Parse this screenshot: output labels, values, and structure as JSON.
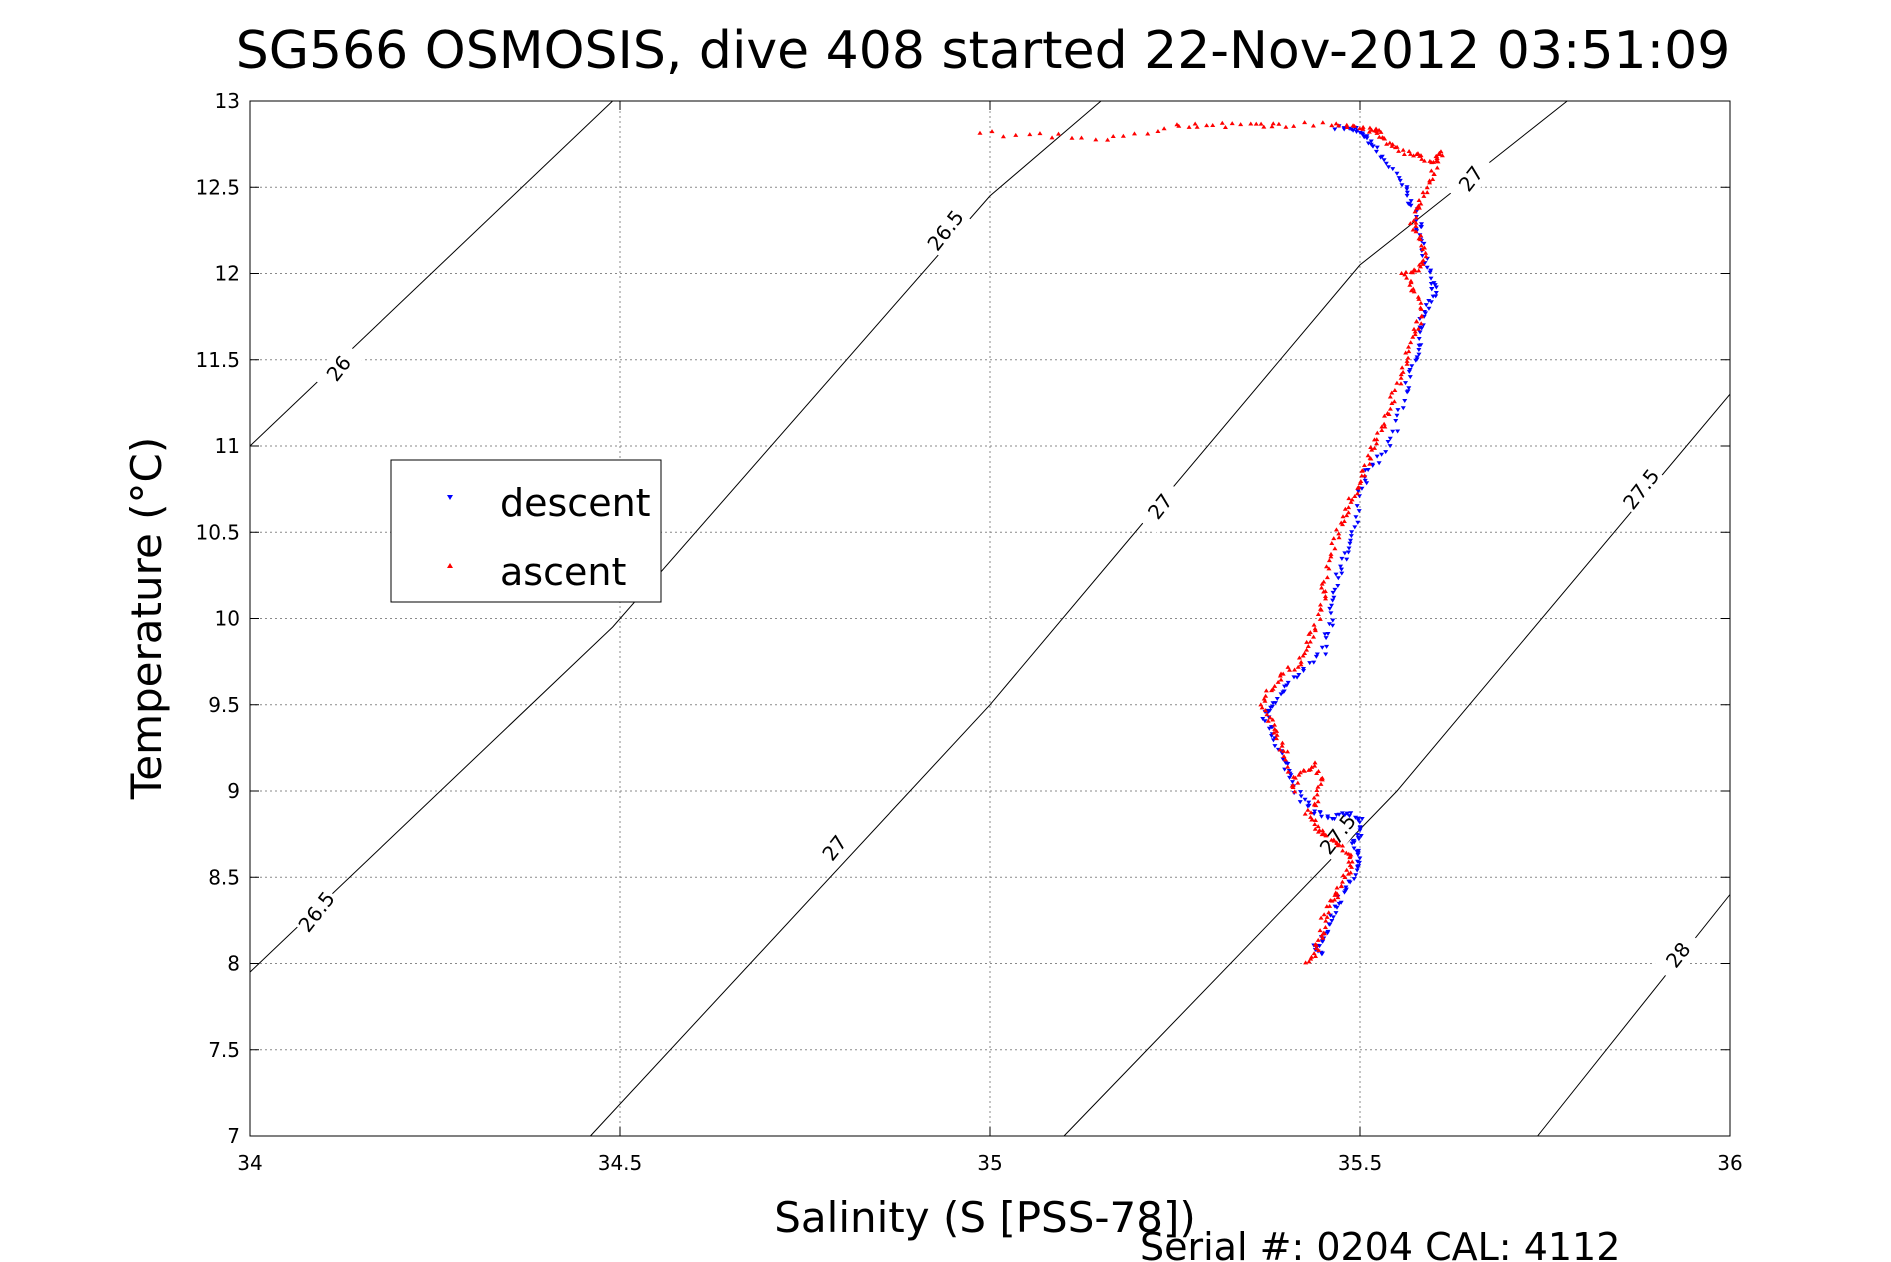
{
  "chart_data": {
    "type": "scatter",
    "title": "SG566 OSMOSIS, dive 408 started 22-Nov-2012 03:51:09",
    "xlabel": "Salinity (S [PSS-78])",
    "ylabel": "Temperature (°C)",
    "xlim": [
      34,
      36
    ],
    "ylim": [
      7,
      13
    ],
    "xticks": [
      34,
      34.5,
      35,
      35.5,
      36
    ],
    "yticks": [
      7,
      7.5,
      8,
      8.5,
      9,
      9.5,
      10,
      10.5,
      11,
      11.5,
      12,
      12.5,
      13
    ],
    "xtick_labels": [
      "34",
      "34.5",
      "35",
      "35.5",
      "36"
    ],
    "ytick_labels": [
      "7",
      "7.5",
      "8",
      "8.5",
      "9",
      "9.5",
      "10",
      "10.5",
      "11",
      "11.5",
      "12",
      "12.5",
      "13"
    ],
    "grid": true,
    "legend_position": "left-center",
    "footer": "Serial #: 0204  CAL: 4112",
    "isopycnals": [
      {
        "label": "26",
        "points": [
          [
            34,
            11.0
          ],
          [
            34.49,
            13.0
          ]
        ]
      },
      {
        "label": "26.5",
        "points": [
          [
            34,
            7.95
          ],
          [
            34.49,
            9.95
          ],
          [
            35.0,
            12.45
          ],
          [
            35.15,
            13.0
          ]
        ]
      },
      {
        "label": "27",
        "points": [
          [
            34.46,
            7.0
          ],
          [
            35.0,
            9.5
          ],
          [
            35.5,
            12.05
          ],
          [
            35.78,
            13.0
          ]
        ]
      },
      {
        "label": "27.5",
        "points": [
          [
            35.1,
            7.0
          ],
          [
            35.55,
            9.0
          ],
          [
            36.0,
            11.3
          ]
        ]
      },
      {
        "label": "28",
        "points": [
          [
            35.74,
            7.0
          ],
          [
            36.0,
            8.4
          ]
        ]
      }
    ],
    "contour_labels": [
      {
        "text": "26",
        "x": 34.12,
        "y": 11.45
      },
      {
        "text": "26.5",
        "x": 34.09,
        "y": 8.3
      },
      {
        "text": "26.5",
        "x": 34.94,
        "y": 12.25
      },
      {
        "text": "27",
        "x": 34.79,
        "y": 8.67
      },
      {
        "text": "27",
        "x": 35.23,
        "y": 10.65
      },
      {
        "text": "27",
        "x": 35.65,
        "y": 12.55
      },
      {
        "text": "27.5",
        "x": 35.47,
        "y": 8.75
      },
      {
        "text": "27.5",
        "x": 35.88,
        "y": 10.75
      },
      {
        "text": "28",
        "x": 35.93,
        "y": 8.05
      }
    ],
    "series": [
      {
        "name": "descent",
        "color": "#0000ff",
        "marker": "triangle-down",
        "path": [
          [
            35.47,
            12.85
          ],
          [
            35.49,
            12.84
          ],
          [
            35.5,
            12.82
          ],
          [
            35.51,
            12.78
          ],
          [
            35.52,
            12.72
          ],
          [
            35.54,
            12.62
          ],
          [
            35.56,
            12.5
          ],
          [
            35.57,
            12.4
          ],
          [
            35.58,
            12.3
          ],
          [
            35.58,
            12.2
          ],
          [
            35.59,
            12.1
          ],
          [
            35.6,
            11.95
          ],
          [
            35.6,
            11.9
          ],
          [
            35.59,
            11.8
          ],
          [
            35.58,
            11.7
          ],
          [
            35.58,
            11.55
          ],
          [
            35.57,
            11.45
          ],
          [
            35.56,
            11.3
          ],
          [
            35.55,
            11.1
          ],
          [
            35.53,
            10.95
          ],
          [
            35.51,
            10.85
          ],
          [
            35.5,
            10.7
          ],
          [
            35.49,
            10.5
          ],
          [
            35.48,
            10.38
          ],
          [
            35.47,
            10.25
          ],
          [
            35.46,
            10.1
          ],
          [
            35.46,
            9.95
          ],
          [
            35.45,
            9.8
          ],
          [
            35.42,
            9.7
          ],
          [
            35.4,
            9.6
          ],
          [
            35.38,
            9.5
          ],
          [
            35.37,
            9.45
          ],
          [
            35.38,
            9.35
          ],
          [
            35.39,
            9.25
          ],
          [
            35.4,
            9.15
          ],
          [
            35.41,
            9.05
          ],
          [
            35.42,
            8.95
          ],
          [
            35.44,
            8.88
          ],
          [
            35.46,
            8.85
          ],
          [
            35.48,
            8.87
          ],
          [
            35.5,
            8.85
          ],
          [
            35.5,
            8.75
          ],
          [
            35.49,
            8.7
          ],
          [
            35.5,
            8.62
          ],
          [
            35.5,
            8.55
          ],
          [
            35.48,
            8.45
          ],
          [
            35.47,
            8.35
          ],
          [
            35.46,
            8.25
          ],
          [
            35.45,
            8.15
          ],
          [
            35.44,
            8.1
          ],
          [
            35.45,
            8.05
          ]
        ]
      },
      {
        "name": "ascent",
        "color": "#ff0000",
        "marker": "triangle-up",
        "path": [
          [
            35.43,
            8.0
          ],
          [
            35.44,
            8.08
          ],
          [
            35.45,
            8.15
          ],
          [
            35.45,
            8.25
          ],
          [
            35.46,
            8.35
          ],
          [
            35.47,
            8.42
          ],
          [
            35.48,
            8.5
          ],
          [
            35.49,
            8.58
          ],
          [
            35.48,
            8.65
          ],
          [
            35.47,
            8.7
          ],
          [
            35.45,
            8.75
          ],
          [
            35.44,
            8.8
          ],
          [
            35.43,
            8.86
          ],
          [
            35.44,
            8.95
          ],
          [
            35.45,
            9.05
          ],
          [
            35.44,
            9.15
          ],
          [
            35.42,
            9.1
          ],
          [
            35.41,
            9.0
          ],
          [
            35.4,
            9.2
          ],
          [
            35.39,
            9.3
          ],
          [
            35.38,
            9.4
          ],
          [
            35.37,
            9.5
          ],
          [
            35.38,
            9.6
          ],
          [
            35.4,
            9.68
          ],
          [
            35.42,
            9.75
          ],
          [
            35.43,
            9.85
          ],
          [
            35.44,
            9.95
          ],
          [
            35.45,
            10.08
          ],
          [
            35.45,
            10.2
          ],
          [
            35.46,
            10.35
          ],
          [
            35.47,
            10.5
          ],
          [
            35.48,
            10.6
          ],
          [
            35.49,
            10.7
          ],
          [
            35.5,
            10.8
          ],
          [
            35.51,
            10.9
          ],
          [
            35.52,
            11.0
          ],
          [
            35.53,
            11.1
          ],
          [
            35.54,
            11.22
          ],
          [
            35.55,
            11.35
          ],
          [
            35.56,
            11.48
          ],
          [
            35.57,
            11.6
          ],
          [
            35.58,
            11.7
          ],
          [
            35.58,
            11.8
          ],
          [
            35.57,
            11.92
          ],
          [
            35.56,
            12.0
          ],
          [
            35.58,
            12.02
          ],
          [
            35.59,
            12.1
          ],
          [
            35.58,
            12.2
          ],
          [
            35.57,
            12.3
          ],
          [
            35.58,
            12.4
          ],
          [
            35.59,
            12.5
          ],
          [
            35.6,
            12.6
          ],
          [
            35.61,
            12.7
          ],
          [
            35.6,
            12.65
          ],
          [
            35.58,
            12.68
          ],
          [
            35.56,
            12.7
          ],
          [
            35.54,
            12.75
          ],
          [
            35.53,
            12.8
          ],
          [
            35.52,
            12.83
          ],
          [
            35.5,
            12.85
          ],
          [
            35.47,
            12.86
          ],
          [
            35.4,
            12.86
          ],
          [
            35.36,
            12.86
          ],
          [
            35.3,
            12.86
          ],
          [
            35.25,
            12.86
          ],
          [
            35.17,
            12.78
          ],
          [
            35.08,
            12.8
          ],
          [
            34.99,
            12.81
          ]
        ]
      }
    ]
  }
}
